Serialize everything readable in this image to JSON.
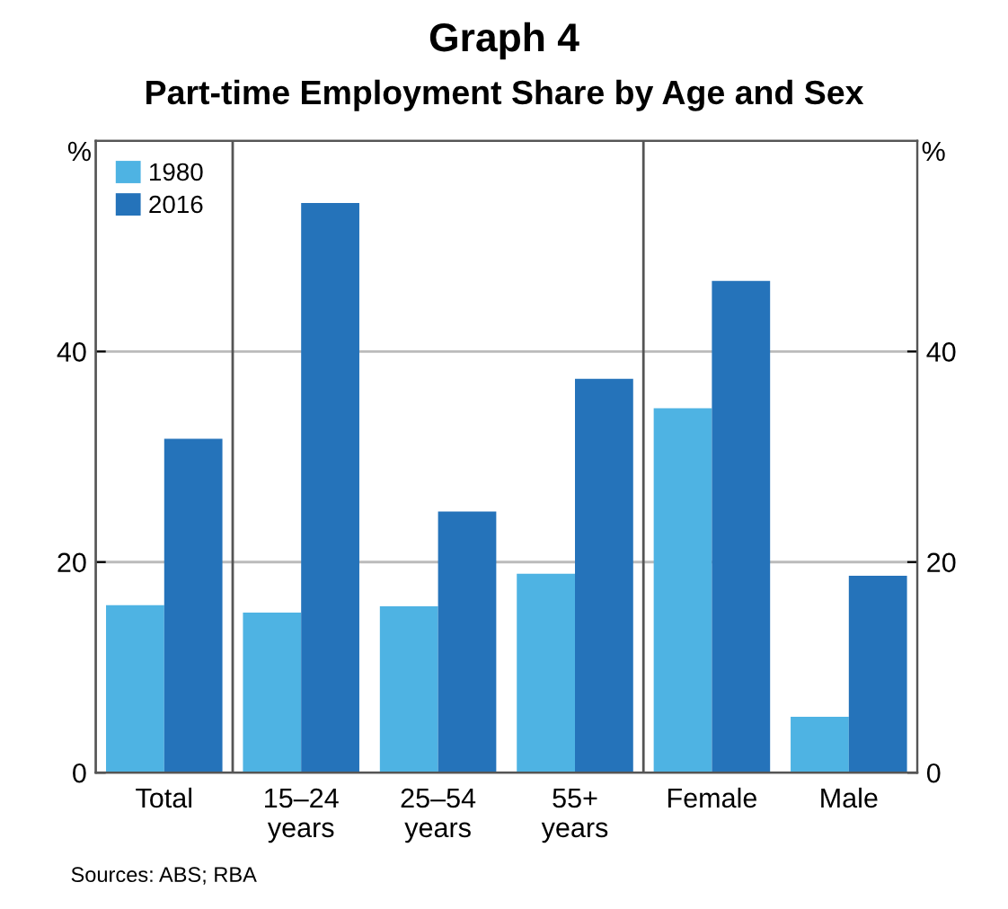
{
  "chart_data": {
    "type": "bar",
    "title": "Graph 4",
    "subtitle": "Part-time Employment Share by Age and Sex",
    "ylabel": "%",
    "y2label": "%",
    "categories": [
      "Total",
      "15–24\nyears",
      "25–54\nyears",
      "55+\nyears",
      "Female",
      "Male"
    ],
    "series": [
      {
        "name": "1980",
        "color": "#4eb3e3",
        "values": [
          15.9,
          15.2,
          15.8,
          18.9,
          34.6,
          5.3
        ]
      },
      {
        "name": "2016",
        "color": "#2573ba",
        "values": [
          31.7,
          54.1,
          24.8,
          37.4,
          46.7,
          18.7
        ]
      }
    ],
    "ylim": [
      0,
      60
    ],
    "yticks": [
      0,
      20,
      40
    ],
    "y2lim": [
      0,
      60
    ],
    "y2ticks": [
      0,
      20,
      40
    ],
    "grid": "y",
    "legend": "top left",
    "annotations": [
      "Sources: ABS; RBA"
    ]
  }
}
